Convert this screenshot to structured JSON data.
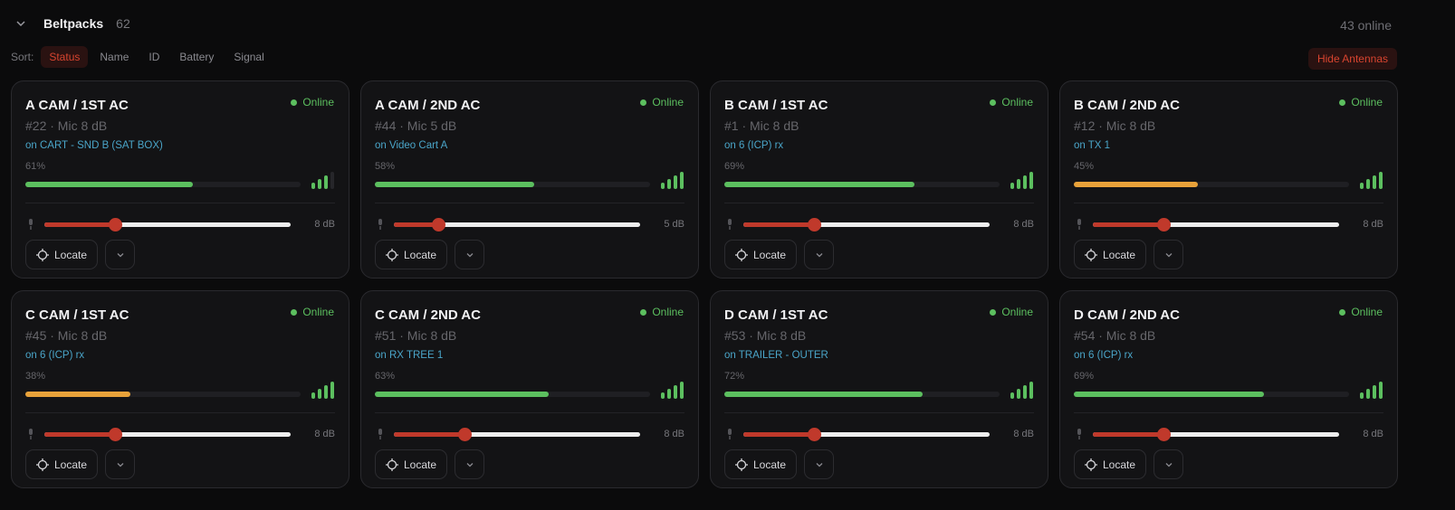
{
  "header": {
    "title": "Beltpacks",
    "count": "62",
    "online": "43 online"
  },
  "sort": {
    "label": "Sort:",
    "options": [
      "Status",
      "Name",
      "ID",
      "Battery",
      "Signal"
    ],
    "active": "Status"
  },
  "hide_antennas": "Hide Antennas",
  "colors": {
    "online": "#5cbf5f",
    "battery_ok": "#5cbf5f",
    "battery_low": "#e8a23a",
    "accent": "#c0392b",
    "link": "#4aa5c9"
  },
  "locate_label": "Locate",
  "cards": [
    {
      "name": "A CAM / 1ST AC",
      "status": "Online",
      "meta": "#22 · Mic 8 dB",
      "location": "on CART - SND B (SAT BOX)",
      "battery": "61%",
      "battery_value": 61,
      "battery_color": "#5cbf5f",
      "signal_bars": 3,
      "gain": "8 dB",
      "gain_db": 8
    },
    {
      "name": "A CAM / 2ND AC",
      "status": "Online",
      "meta": "#44 · Mic 5 dB",
      "location": "on Video Cart A",
      "battery": "58%",
      "battery_value": 58,
      "battery_color": "#5cbf5f",
      "signal_bars": 4,
      "gain": "5 dB",
      "gain_db": 5
    },
    {
      "name": "B CAM / 1ST AC",
      "status": "Online",
      "meta": "#1 · Mic 8 dB",
      "location": "on 6 (ICP) rx",
      "battery": "69%",
      "battery_value": 69,
      "battery_color": "#5cbf5f",
      "signal_bars": 4,
      "gain": "8 dB",
      "gain_db": 8
    },
    {
      "name": "B CAM / 2ND AC",
      "status": "Online",
      "meta": "#12 · Mic 8 dB",
      "location": "on TX 1",
      "battery": "45%",
      "battery_value": 45,
      "battery_color": "#e8a23a",
      "signal_bars": 4,
      "gain": "8 dB",
      "gain_db": 8
    },
    {
      "name": "C CAM / 1ST AC",
      "status": "Online",
      "meta": "#45 · Mic 8 dB",
      "location": "on 6 (ICP) rx",
      "battery": "38%",
      "battery_value": 38,
      "battery_color": "#e8a23a",
      "signal_bars": 4,
      "gain": "8 dB",
      "gain_db": 8
    },
    {
      "name": "C CAM / 2ND AC",
      "status": "Online",
      "meta": "#51 · Mic 8 dB",
      "location": "on RX TREE 1",
      "battery": "63%",
      "battery_value": 63,
      "battery_color": "#5cbf5f",
      "signal_bars": 4,
      "gain": "8 dB",
      "gain_db": 8
    },
    {
      "name": "D CAM / 1ST AC",
      "status": "Online",
      "meta": "#53 · Mic 8 dB",
      "location": "on TRAILER - OUTER",
      "battery": "72%",
      "battery_value": 72,
      "battery_color": "#5cbf5f",
      "signal_bars": 4,
      "gain": "8 dB",
      "gain_db": 8
    },
    {
      "name": "D CAM / 2ND AC",
      "status": "Online",
      "meta": "#54 · Mic 8 dB",
      "location": "on 6 (ICP) rx",
      "battery": "69%",
      "battery_value": 69,
      "battery_color": "#5cbf5f",
      "signal_bars": 4,
      "gain": "8 dB",
      "gain_db": 8
    }
  ]
}
